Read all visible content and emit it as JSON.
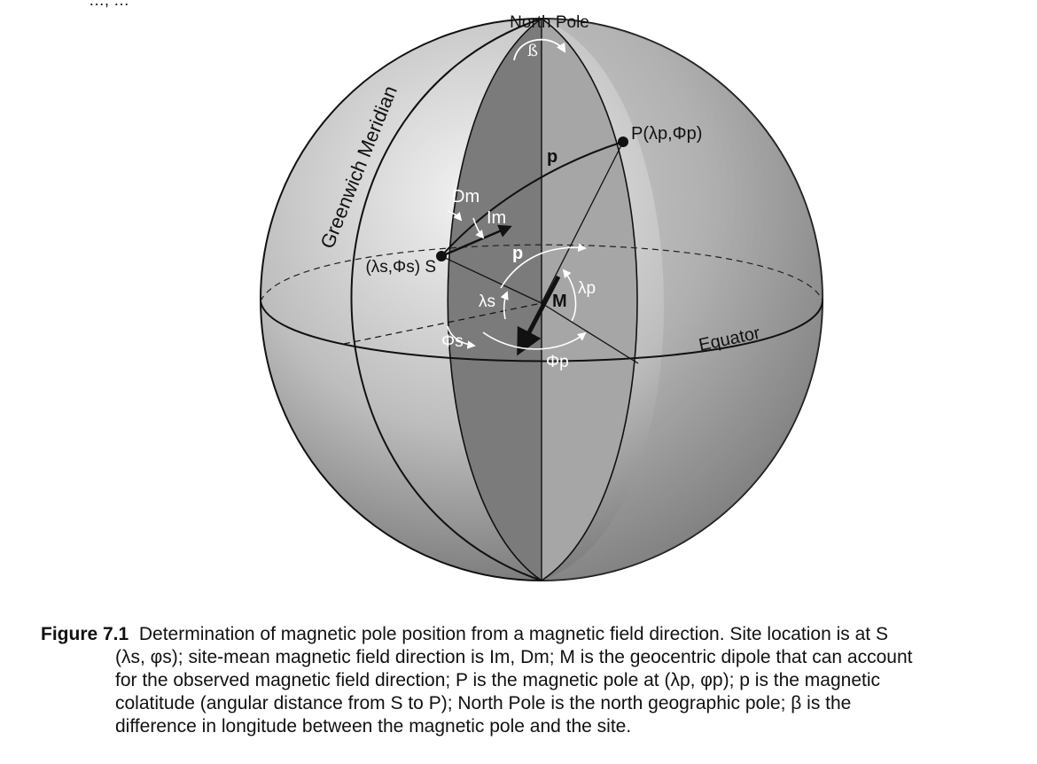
{
  "labels": {
    "north_pole": "North Pole",
    "beta": "ß",
    "pole_point": "P(λp,Φp)",
    "p_upper": "p",
    "p_lower": "p",
    "dm": "Dm",
    "im": "Im",
    "site_point": "(λs,Φs) S",
    "lambda_s": "λs",
    "phi_s": "Φs",
    "m_vector": "M",
    "lambda_p": "λp",
    "phi_p": "Φp",
    "greenwich": "Greenwich Meridian",
    "equator": "Equator",
    "top_fragment": "…, …"
  },
  "caption": {
    "label": "Figure 7.1",
    "lines": [
      "Determination of magnetic pole position from a magnetic field direction.  Site location is at S",
      "(λs, φs); site-mean magnetic field direction is Im, Dm; M is the geocentric dipole that can account",
      "for the observed magnetic field direction; P is the magnetic pole at (λp, φp); p is the magnetic",
      "colatitude (angular distance from S to P); North Pole is the north geographic pole; β is the",
      "difference in longitude between the magnetic pole and the site."
    ]
  },
  "colors": {
    "dark_lune": "#7a7a7a",
    "mid_lune": "#a8a8a8",
    "light_lune": "#c8c8c8",
    "outline": "#111111"
  }
}
